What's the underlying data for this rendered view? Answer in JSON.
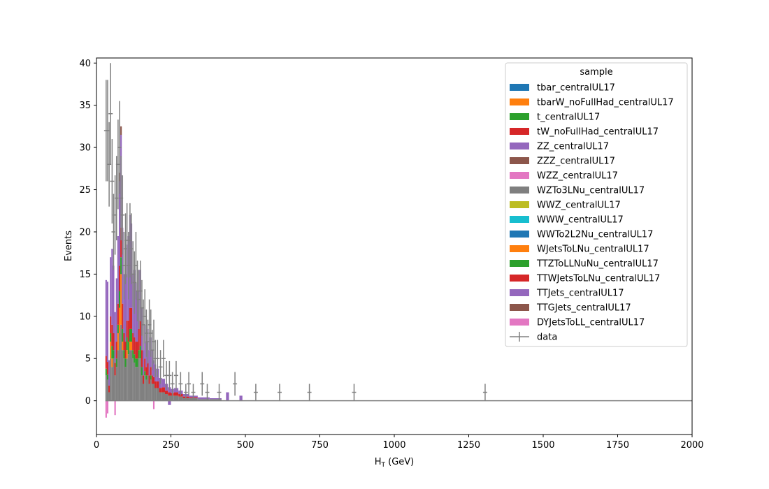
{
  "chart_data": {
    "type": "bar",
    "stacked": true,
    "xlabel_main": "H",
    "xlabel_sub": "T",
    "xlabel_rest": " (GeV)",
    "ylabel": "Events",
    "xlim": [
      0,
      2000
    ],
    "ylim": [
      -4,
      40.6
    ],
    "xticks": [
      0,
      250,
      500,
      750,
      1000,
      1250,
      1500,
      1750,
      2000
    ],
    "yticks": [
      0,
      5,
      10,
      15,
      20,
      25,
      30,
      35,
      40
    ],
    "grid": false,
    "legend": {
      "title": "sample",
      "placement": "top-right",
      "entries": [
        {
          "label": "tbar_centralUL17",
          "color": "#1f77b4",
          "kind": "patch"
        },
        {
          "label": "tbarW_noFullHad_centralUL17",
          "color": "#ff7f0e",
          "kind": "patch"
        },
        {
          "label": "t_centralUL17",
          "color": "#2ca02c",
          "kind": "patch"
        },
        {
          "label": "tW_noFullHad_centralUL17",
          "color": "#d62728",
          "kind": "patch"
        },
        {
          "label": "ZZ_centralUL17",
          "color": "#9467bd",
          "kind": "patch"
        },
        {
          "label": "ZZZ_centralUL17",
          "color": "#8c564b",
          "kind": "patch"
        },
        {
          "label": "WZZ_centralUL17",
          "color": "#e377c2",
          "kind": "patch"
        },
        {
          "label": "WZTo3LNu_centralUL17",
          "color": "#7f7f7f",
          "kind": "patch"
        },
        {
          "label": "WWZ_centralUL17",
          "color": "#bcbd22",
          "kind": "patch"
        },
        {
          "label": "WWW_centralUL17",
          "color": "#17becf",
          "kind": "patch"
        },
        {
          "label": "WWTo2L2Nu_centralUL17",
          "color": "#1f77b4",
          "kind": "patch"
        },
        {
          "label": "WJetsToLNu_centralUL17",
          "color": "#ff7f0e",
          "kind": "patch"
        },
        {
          "label": "TTZToLLNuNu_centralUL17",
          "color": "#2ca02c",
          "kind": "patch"
        },
        {
          "label": "TTWJetsToLNu_centralUL17",
          "color": "#d62728",
          "kind": "patch"
        },
        {
          "label": "TTJets_centralUL17",
          "color": "#9467bd",
          "kind": "patch"
        },
        {
          "label": "TTGJets_centralUL17",
          "color": "#8c564b",
          "kind": "patch"
        },
        {
          "label": "DYJetsToLL_centralUL17",
          "color": "#e377c2",
          "kind": "patch"
        },
        {
          "label": "data",
          "color": "#808080",
          "kind": "errorbar"
        }
      ]
    },
    "mc_stack": [
      {
        "x": [
          30,
          35
        ],
        "seg": {
          "TTJets_centralUL17": 9.0,
          "WZTo3LNu_centralUL17": 3.0,
          "TTWJetsToLNu_centralUL17": 1.5,
          "TTZToLLNuNu_centralUL17": 0.8
        },
        "neg": {
          "DYJetsToLL_centralUL17": -2.0
        }
      },
      {
        "x": [
          35,
          40
        ],
        "seg": {
          "TTJets_centralUL17": 9.5,
          "WZTo3LNu_centralUL17": 2.5,
          "TTWJetsToLNu_centralUL17": 1.5,
          "TTZToLLNuNu_centralUL17": 0.6
        },
        "neg": {
          "DYJetsToLL_centralUL17": -1.5
        }
      },
      {
        "x": [
          40,
          45
        ],
        "seg": {
          "TTJets_centralUL17": 3.0,
          "WZTo3LNu_centralUL17": 1.0,
          "TTWJetsToLNu_centralUL17": 0.8
        }
      },
      {
        "x": [
          45,
          50
        ],
        "seg": {
          "TTJets_centralUL17": 7.0,
          "WZTo3LNu_centralUL17": 5.0,
          "TTWJetsToLNu_centralUL17": 2.0,
          "TTZToLLNuNu_centralUL17": 1.0,
          "WJetsToLNu_centralUL17": 2.0
        }
      },
      {
        "x": [
          50,
          55
        ],
        "seg": {
          "TTJets_centralUL17": 9.0,
          "WZTo3LNu_centralUL17": 4.0,
          "TTWJetsToLNu_centralUL17": 2.5,
          "TTZToLLNuNu_centralUL17": 1.5,
          "WJetsToLNu_centralUL17": 1.0
        }
      },
      {
        "x": [
          55,
          60
        ],
        "seg": {
          "TTJets_centralUL17": 8.0,
          "WZTo3LNu_centralUL17": 5.0,
          "TTWJetsToLNu_centralUL17": 2.0,
          "TTZToLLNuNu_centralUL17": 1.0
        }
      },
      {
        "x": [
          60,
          65
        ],
        "seg": {
          "TTJets_centralUL17": 6.0,
          "WZTo3LNu_centralUL17": 3.0,
          "TTWJetsToLNu_centralUL17": 1.5
        },
        "neg": {
          "DYJetsToLL_centralUL17": -1.7
        }
      },
      {
        "x": [
          65,
          70
        ],
        "seg": {
          "TTJets_centralUL17": 7.5,
          "WZTo3LNu_centralUL17": 4.0,
          "TTWJetsToLNu_centralUL17": 2.0,
          "TTZToLLNuNu_centralUL17": 1.0
        }
      },
      {
        "x": [
          70,
          75
        ],
        "seg": {
          "TTJets_centralUL17": 8.0,
          "WZTo3LNu_centralUL17": 6.0,
          "TTWJetsToLNu_centralUL17": 2.5,
          "TTZToLLNuNu_centralUL17": 1.0,
          "WJetsToLNu_centralUL17": 2.0
        }
      },
      {
        "x": [
          75,
          80
        ],
        "seg": {
          "TTJets_centralUL17": 10.0,
          "WZTo3LNu_centralUL17": 8.0,
          "TTWJetsToLNu_centralUL17": 3.0,
          "TTZToLLNuNu_centralUL17": 2.0,
          "WJetsToLNu_centralUL17": 3.0,
          "TTGJets_centralUL17": 1.0
        }
      },
      {
        "x": [
          80,
          85
        ],
        "seg": {
          "TTJets_centralUL17": 11.0,
          "WZTo3LNu_centralUL17": 9.0,
          "TTWJetsToLNu_centralUL17": 3.5,
          "TTZToLLNuNu_centralUL17": 2.0,
          "WJetsToLNu_centralUL17": 6.0,
          "TTGJets_centralUL17": 1.0
        }
      },
      {
        "x": [
          85,
          90
        ],
        "seg": {
          "TTJets_centralUL17": 9.0,
          "WZTo3LNu_centralUL17": 6.0,
          "TTWJetsToLNu_centralUL17": 3.0,
          "TTZToLLNuNu_centralUL17": 1.5,
          "WJetsToLNu_centralUL17": 1.0
        }
      },
      {
        "x": [
          90,
          95
        ],
        "seg": {
          "TTJets_centralUL17": 7.0,
          "WZTo3LNu_centralUL17": 5.0,
          "TTWJetsToLNu_centralUL17": 2.0,
          "TTZToLLNuNu_centralUL17": 1.0
        }
      },
      {
        "x": [
          95,
          100
        ],
        "seg": {
          "TTJets_centralUL17": 8.0,
          "WZTo3LNu_centralUL17": 4.0,
          "TTWJetsToLNu_centralUL17": 2.0,
          "TTZToLLNuNu_centralUL17": 1.0
        }
      },
      {
        "x": [
          100,
          105
        ],
        "seg": {
          "TTJets_centralUL17": 9.0,
          "WZTo3LNu_centralUL17": 5.0,
          "TTWJetsToLNu_centralUL17": 2.0,
          "TTZToLLNuNu_centralUL17": 1.5,
          "WJetsToLNu_centralUL17": 1.0
        }
      },
      {
        "x": [
          105,
          110
        ],
        "seg": {
          "TTJets_centralUL17": 10.0,
          "WZTo3LNu_centralUL17": 5.5,
          "TTWJetsToLNu_centralUL17": 2.5,
          "TTZToLLNuNu_centralUL17": 1.5
        }
      },
      {
        "x": [
          110,
          115
        ],
        "seg": {
          "TTJets_centralUL17": 11.0,
          "WZTo3LNu_centralUL17": 6.0,
          "TTWJetsToLNu_centralUL17": 2.5,
          "TTZToLLNuNu_centralUL17": 1.5,
          "WJetsToLNu_centralUL17": 1.0
        }
      },
      {
        "x": [
          115,
          120
        ],
        "seg": {
          "TTJets_centralUL17": 10.0,
          "WZTo3LNu_centralUL17": 6.0,
          "TTWJetsToLNu_centralUL17": 2.5,
          "TTZToLLNuNu_centralUL17": 1.5,
          "WJetsToLNu_centralUL17": 1.0
        }
      },
      {
        "x": [
          120,
          125
        ],
        "seg": {
          "TTJets_centralUL17": 7.0,
          "WZTo3LNu_centralUL17": 5.0,
          "TTWJetsToLNu_centralUL17": 2.0,
          "TTZToLLNuNu_centralUL17": 1.0
        }
      },
      {
        "x": [
          125,
          130
        ],
        "seg": {
          "TTJets_centralUL17": 8.0,
          "WZTo3LNu_centralUL17": 4.5,
          "TTWJetsToLNu_centralUL17": 2.0,
          "TTZToLLNuNu_centralUL17": 1.0
        }
      },
      {
        "x": [
          130,
          135
        ],
        "seg": {
          "TTJets_centralUL17": 7.0,
          "WZTo3LNu_centralUL17": 4.0,
          "TTWJetsToLNu_centralUL17": 2.0,
          "TTZToLLNuNu_centralUL17": 1.0
        }
      },
      {
        "x": [
          135,
          140
        ],
        "seg": {
          "TTJets_centralUL17": 6.0,
          "WZTo3LNu_centralUL17": 4.0,
          "TTWJetsToLNu_centralUL17": 2.0,
          "TTZToLLNuNu_centralUL17": 1.0
        }
      },
      {
        "x": [
          140,
          145
        ],
        "seg": {
          "TTJets_centralUL17": 7.0,
          "WZTo3LNu_centralUL17": 5.0,
          "TTWJetsToLNu_centralUL17": 2.5,
          "TTZToLLNuNu_centralUL17": 1.0
        }
      },
      {
        "x": [
          145,
          150
        ],
        "seg": {
          "TTJets_centralUL17": 6.0,
          "WZTo3LNu_centralUL17": 5.0,
          "TTWJetsToLNu_centralUL17": 3.0,
          "TTZToLLNuNu_centralUL17": 1.5
        }
      },
      {
        "x": [
          150,
          155
        ],
        "seg": {
          "TTJets_centralUL17": 5.0,
          "WZTo3LNu_centralUL17": 3.0,
          "TTWJetsToLNu_centralUL17": 2.0,
          "TTZToLLNuNu_centralUL17": 1.0
        }
      },
      {
        "x": [
          155,
          160
        ],
        "seg": {
          "TTJets_centralUL17": 3.0,
          "WZTo3LNu_centralUL17": 2.0,
          "TTWJetsToLNu_centralUL17": 1.0
        }
      },
      {
        "x": [
          160,
          165
        ],
        "seg": {
          "TTJets_centralUL17": 4.0,
          "WZTo3LNu_centralUL17": 3.0,
          "TTWJetsToLNu_centralUL17": 1.5,
          "TTZToLLNuNu_centralUL17": 0.5
        }
      },
      {
        "x": [
          165,
          170
        ],
        "seg": {
          "TTJets_centralUL17": 3.0,
          "WZTo3LNu_centralUL17": 2.5,
          "TTWJetsToLNu_centralUL17": 1.0,
          "TTZToLLNuNu_centralUL17": 0.5
        }
      },
      {
        "x": [
          170,
          175
        ],
        "seg": {
          "TTJets_centralUL17": 4.0,
          "WZTo3LNu_centralUL17": 3.0,
          "TTWJetsToLNu_centralUL17": 1.5
        }
      },
      {
        "x": [
          175,
          180
        ],
        "seg": {
          "TTJets_centralUL17": 3.0,
          "WZTo3LNu_centralUL17": 2.0,
          "TTWJetsToLNu_centralUL17": 1.0
        }
      },
      {
        "x": [
          180,
          185
        ],
        "seg": {
          "TTJets_centralUL17": 3.5,
          "WZTo3LNu_centralUL17": 2.5,
          "TTWJetsToLNu_centralUL17": 1.0,
          "TTZToLLNuNu_centralUL17": 0.5
        }
      },
      {
        "x": [
          185,
          190
        ],
        "seg": {
          "TTJets_centralUL17": 3.0,
          "WZTo3LNu_centralUL17": 2.0,
          "TTWJetsToLNu_centralUL17": 1.0
        }
      },
      {
        "x": [
          190,
          195
        ],
        "seg": {
          "TTJets_centralUL17": 2.0,
          "WZTo3LNu_centralUL17": 2.0,
          "TTWJetsToLNu_centralUL17": 0.8
        },
        "neg": {
          "DYJetsToLL_centralUL17": -1.0
        }
      },
      {
        "x": [
          195,
          200
        ],
        "seg": {
          "TTJets_centralUL17": 2.0,
          "WZTo3LNu_centralUL17": 1.5,
          "TTWJetsToLNu_centralUL17": 0.8
        }
      },
      {
        "x": [
          200,
          210
        ],
        "seg": {
          "TTJets_centralUL17": 1.5,
          "WZTo3LNu_centralUL17": 1.5,
          "TTWJetsToLNu_centralUL17": 0.8
        }
      },
      {
        "x": [
          210,
          220
        ],
        "seg": {
          "TTJets_centralUL17": 1.2,
          "WZTo3LNu_centralUL17": 1.0,
          "TTWJetsToLNu_centralUL17": 0.5
        }
      },
      {
        "x": [
          220,
          230
        ],
        "seg": {
          "TTJets_centralUL17": 1.0,
          "WZTo3LNu_centralUL17": 1.0,
          "TTWJetsToLNu_centralUL17": 0.6
        }
      },
      {
        "x": [
          230,
          240
        ],
        "seg": {
          "TTJets_centralUL17": 0.8,
          "WZTo3LNu_centralUL17": 0.8,
          "TTWJetsToLNu_centralUL17": 0.4
        }
      },
      {
        "x": [
          240,
          250
        ],
        "seg": {
          "TTJets_centralUL17": 0.6,
          "WZTo3LNu_centralUL17": 0.6,
          "TTWJetsToLNu_centralUL17": 0.4
        },
        "neg": {
          "ZZ_centralUL17": -0.5
        }
      },
      {
        "x": [
          250,
          260
        ],
        "seg": {
          "TTJets_centralUL17": 0.5,
          "WZTo3LNu_centralUL17": 0.6,
          "TTWJetsToLNu_centralUL17": 0.3
        }
      },
      {
        "x": [
          260,
          275
        ],
        "seg": {
          "TTJets_centralUL17": 0.5,
          "WZTo3LNu_centralUL17": 0.6,
          "TTWJetsToLNu_centralUL17": 0.4
        }
      },
      {
        "x": [
          275,
          290
        ],
        "seg": {
          "TTJets_centralUL17": 0.4,
          "WZTo3LNu_centralUL17": 0.5,
          "TTWJetsToLNu_centralUL17": 0.3
        }
      },
      {
        "x": [
          290,
          310
        ],
        "seg": {
          "TTJets_centralUL17": 0.3,
          "WZTo3LNu_centralUL17": 0.3,
          "TTWJetsToLNu_centralUL17": 0.2
        }
      },
      {
        "x": [
          310,
          340
        ],
        "seg": {
          "TTJets_centralUL17": 0.2,
          "WZTo3LNu_centralUL17": 0.3,
          "TTWJetsToLNu_centralUL17": 0.1
        }
      },
      {
        "x": [
          340,
          380
        ],
        "seg": {
          "TTJets_centralUL17": 0.2,
          "WZTo3LNu_centralUL17": 0.2
        }
      },
      {
        "x": [
          380,
          420
        ],
        "seg": {
          "TTJets_centralUL17": 0.1,
          "WZTo3LNu_centralUL17": 0.2
        }
      },
      {
        "x": [
          435,
          445
        ],
        "seg": {
          "TTJets_centralUL17": 1.0
        }
      },
      {
        "x": [
          480,
          490
        ],
        "seg": {
          "TTJets_centralUL17": 0.6
        }
      }
    ],
    "data_points": [
      {
        "x": 32.5,
        "y": 32,
        "err": 6
      },
      {
        "x": 37.5,
        "y": 32,
        "err": 6
      },
      {
        "x": 42.5,
        "y": 28,
        "err": 5
      },
      {
        "x": 47.5,
        "y": 34,
        "err": 6
      },
      {
        "x": 52.5,
        "y": 26,
        "err": 5
      },
      {
        "x": 57.5,
        "y": 20,
        "err": 4.5
      },
      {
        "x": 62.5,
        "y": 22,
        "err": 4.7
      },
      {
        "x": 67.5,
        "y": 24,
        "err": 5
      },
      {
        "x": 72.5,
        "y": 28,
        "err": 5.3
      },
      {
        "x": 77.5,
        "y": 30,
        "err": 5.5
      },
      {
        "x": 82.5,
        "y": 24,
        "err": 5
      },
      {
        "x": 87.5,
        "y": 22,
        "err": 4.7
      },
      {
        "x": 92.5,
        "y": 16,
        "err": 4
      },
      {
        "x": 97.5,
        "y": 18,
        "err": 4.2
      },
      {
        "x": 102.5,
        "y": 19,
        "err": 4.4
      },
      {
        "x": 107.5,
        "y": 16,
        "err": 4
      },
      {
        "x": 112.5,
        "y": 19,
        "err": 4.4
      },
      {
        "x": 117.5,
        "y": 18,
        "err": 4.2
      },
      {
        "x": 122.5,
        "y": 15,
        "err": 3.9
      },
      {
        "x": 127.5,
        "y": 14,
        "err": 3.7
      },
      {
        "x": 132.5,
        "y": 16,
        "err": 4
      },
      {
        "x": 137.5,
        "y": 13,
        "err": 3.6
      },
      {
        "x": 142.5,
        "y": 12,
        "err": 3.5
      },
      {
        "x": 147.5,
        "y": 13,
        "err": 3.6
      },
      {
        "x": 152.5,
        "y": 11,
        "err": 3.3
      },
      {
        "x": 157.5,
        "y": 9,
        "err": 3
      },
      {
        "x": 162.5,
        "y": 10,
        "err": 3.2
      },
      {
        "x": 167.5,
        "y": 8,
        "err": 2.8
      },
      {
        "x": 172.5,
        "y": 7,
        "err": 2.6
      },
      {
        "x": 177.5,
        "y": 9,
        "err": 3
      },
      {
        "x": 182.5,
        "y": 8,
        "err": 2.8
      },
      {
        "x": 187.5,
        "y": 6,
        "err": 2.4
      },
      {
        "x": 192.5,
        "y": 7,
        "err": 2.6
      },
      {
        "x": 197.5,
        "y": 5,
        "err": 2.2
      },
      {
        "x": 205,
        "y": 5,
        "err": 2.2
      },
      {
        "x": 215,
        "y": 4,
        "err": 2
      },
      {
        "x": 225,
        "y": 5,
        "err": 2.2
      },
      {
        "x": 235,
        "y": 3,
        "err": 1.7
      },
      {
        "x": 245,
        "y": 3,
        "err": 1.7
      },
      {
        "x": 255,
        "y": 2,
        "err": 1.4
      },
      {
        "x": 267.5,
        "y": 3,
        "err": 1.7
      },
      {
        "x": 282.5,
        "y": 2,
        "err": 1.4
      },
      {
        "x": 300,
        "y": 1,
        "err": 1
      },
      {
        "x": 310,
        "y": 2,
        "err": 1.4
      },
      {
        "x": 325,
        "y": 1,
        "err": 1
      },
      {
        "x": 355,
        "y": 2,
        "err": 1.4
      },
      {
        "x": 372,
        "y": 1,
        "err": 1
      },
      {
        "x": 412,
        "y": 1,
        "err": 1
      },
      {
        "x": 465,
        "y": 2,
        "err": 1.4
      },
      {
        "x": 535,
        "y": 1,
        "err": 1
      },
      {
        "x": 615,
        "y": 1,
        "err": 1
      },
      {
        "x": 715,
        "y": 1,
        "err": 1
      },
      {
        "x": 865,
        "y": 1,
        "err": 1
      },
      {
        "x": 1305,
        "y": 1,
        "err": 1
      }
    ]
  }
}
